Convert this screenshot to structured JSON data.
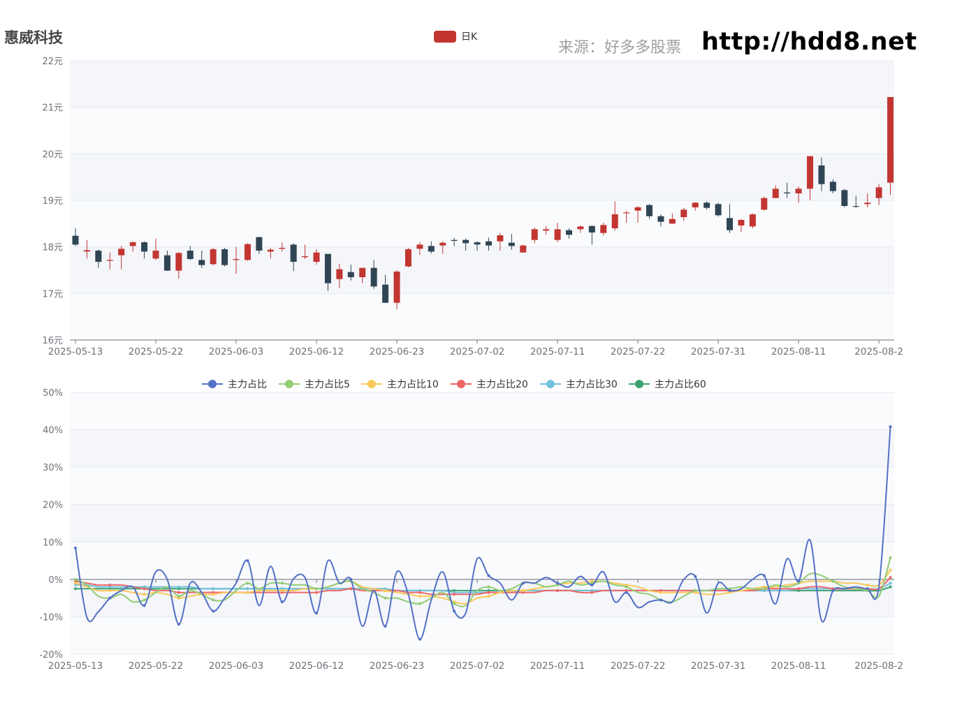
{
  "header": {
    "stock_name": "惠威科技",
    "source_label": "来源：好多多股票",
    "site_url": "http://hdd8.net"
  },
  "colors": {
    "up": "#c23531",
    "down": "#2f4554",
    "main": "#5470c6",
    "main5": "#91cc75",
    "main10": "#fac858",
    "main20": "#ee6666",
    "main30": "#73c0de",
    "main60": "#3ba272"
  },
  "chart_data": [
    {
      "type": "candlestick",
      "legend": [
        "日K"
      ],
      "ylim": [
        16,
        22
      ],
      "y_ticks": [
        "16元",
        "17元",
        "18元",
        "19元",
        "20元",
        "21元",
        "22元"
      ],
      "x_ticks": [
        "2025-05-13",
        "2025-05-22",
        "2025-06-03",
        "2025-06-12",
        "2025-06-23",
        "2025-07-02",
        "2025-07-11",
        "2025-07-22",
        "2025-07-31",
        "2025-08-11",
        "2025-08-2"
      ],
      "ohlc": [
        [
          18.24,
          18.05,
          18.02,
          18.4
        ],
        [
          17.9,
          17.93,
          17.75,
          18.15
        ],
        [
          17.92,
          17.68,
          17.55,
          17.95
        ],
        [
          17.7,
          17.72,
          17.52,
          17.88
        ],
        [
          17.82,
          17.96,
          17.52,
          18.02
        ],
        [
          18.02,
          18.1,
          17.9,
          18.12
        ],
        [
          18.1,
          17.9,
          17.75,
          18.12
        ],
        [
          17.75,
          17.92,
          17.72,
          18.18
        ],
        [
          17.82,
          17.49,
          17.49,
          17.92
        ],
        [
          17.49,
          17.87,
          17.32,
          17.89
        ],
        [
          17.92,
          17.74,
          17.72,
          18.02
        ],
        [
          17.72,
          17.61,
          17.55,
          17.92
        ],
        [
          17.63,
          17.95,
          17.6,
          17.98
        ],
        [
          17.95,
          17.61,
          17.58,
          17.98
        ],
        [
          17.72,
          17.74,
          17.42,
          18.0
        ],
        [
          17.72,
          18.06,
          17.7,
          18.08
        ],
        [
          18.21,
          17.92,
          17.85,
          18.22
        ],
        [
          17.9,
          17.94,
          17.75,
          17.98
        ],
        [
          17.96,
          17.98,
          17.9,
          18.1
        ],
        [
          18.05,
          17.68,
          17.48,
          18.08
        ],
        [
          17.78,
          17.8,
          17.74,
          18.05
        ],
        [
          17.68,
          17.88,
          17.62,
          17.95
        ],
        [
          17.85,
          17.22,
          17.05,
          17.85
        ],
        [
          17.31,
          17.52,
          17.12,
          17.64
        ],
        [
          17.46,
          17.35,
          17.28,
          17.62
        ],
        [
          17.35,
          17.55,
          17.22,
          17.55
        ],
        [
          17.55,
          17.15,
          17.1,
          17.72
        ],
        [
          17.19,
          16.8,
          16.8,
          17.4
        ],
        [
          16.8,
          17.47,
          16.66,
          17.5
        ],
        [
          17.58,
          17.95,
          17.56,
          17.98
        ],
        [
          17.96,
          18.05,
          17.83,
          18.1
        ],
        [
          18.02,
          17.9,
          17.86,
          18.12
        ],
        [
          18.03,
          18.09,
          17.85,
          18.12
        ],
        [
          18.15,
          18.13,
          18.02,
          18.2
        ],
        [
          18.15,
          18.08,
          17.92,
          18.18
        ],
        [
          18.1,
          18.05,
          17.92,
          18.12
        ],
        [
          18.12,
          18.03,
          17.92,
          18.2
        ],
        [
          18.12,
          18.25,
          17.92,
          18.3
        ],
        [
          18.09,
          18.02,
          17.94,
          18.28
        ],
        [
          17.88,
          18.03,
          17.88,
          18.05
        ],
        [
          18.15,
          18.38,
          18.08,
          18.42
        ],
        [
          18.35,
          18.38,
          18.26,
          18.45
        ],
        [
          18.15,
          18.38,
          18.1,
          18.52
        ],
        [
          18.36,
          18.26,
          18.18,
          18.4
        ],
        [
          18.38,
          18.44,
          18.3,
          18.46
        ],
        [
          18.45,
          18.31,
          18.05,
          18.46
        ],
        [
          18.3,
          18.47,
          18.25,
          18.52
        ],
        [
          18.4,
          18.7,
          18.35,
          18.98
        ],
        [
          18.74,
          18.74,
          18.52,
          18.78
        ],
        [
          18.78,
          18.85,
          18.52,
          18.88
        ],
        [
          18.9,
          18.66,
          18.6,
          18.92
        ],
        [
          18.66,
          18.54,
          18.44,
          18.7
        ],
        [
          18.5,
          18.6,
          18.5,
          18.72
        ],
        [
          18.64,
          18.8,
          18.56,
          18.84
        ],
        [
          18.85,
          18.95,
          18.78,
          18.96
        ],
        [
          18.95,
          18.84,
          18.8,
          18.98
        ],
        [
          18.92,
          18.68,
          18.65,
          18.95
        ],
        [
          18.62,
          18.36,
          18.3,
          18.92
        ],
        [
          18.46,
          18.58,
          18.32,
          18.6
        ],
        [
          18.44,
          18.7,
          18.4,
          18.72
        ],
        [
          18.8,
          19.05,
          18.78,
          19.08
        ],
        [
          19.05,
          19.25,
          19.08,
          19.32
        ],
        [
          19.17,
          19.15,
          19.05,
          19.38
        ],
        [
          19.15,
          19.25,
          18.95,
          19.3
        ],
        [
          19.25,
          19.95,
          19.0,
          19.95
        ],
        [
          19.75,
          19.35,
          19.2,
          19.92
        ],
        [
          19.4,
          19.2,
          19.15,
          19.45
        ],
        [
          19.22,
          18.88,
          18.85,
          19.25
        ],
        [
          18.88,
          18.87,
          18.84,
          19.1
        ],
        [
          18.92,
          18.95,
          18.85,
          19.15
        ],
        [
          19.05,
          19.28,
          18.9,
          19.35
        ],
        [
          19.38,
          21.22,
          19.12,
          21.22
        ]
      ]
    },
    {
      "type": "line",
      "ylim": [
        -20,
        50
      ],
      "y_ticks": [
        "-20%",
        "-10%",
        "0%",
        "10%",
        "20%",
        "30%",
        "40%",
        "50%"
      ],
      "x_ticks": [
        "2025-05-13",
        "2025-05-22",
        "2025-06-03",
        "2025-06-12",
        "2025-06-23",
        "2025-07-02",
        "2025-07-11",
        "2025-07-22",
        "2025-07-31",
        "2025-08-11",
        "2025-08-2"
      ],
      "series": [
        {
          "name": "主力占比",
          "color_key": "main",
          "values": [
            8.4,
            -10.2,
            -8.6,
            -5.0,
            -3.0,
            -2.0,
            -7.0,
            2.0,
            0.0,
            -12.0,
            -1.0,
            -3.5,
            -8.5,
            -5.0,
            -1.0,
            5.0,
            -7.0,
            3.5,
            -6.0,
            0.2,
            0.5,
            -9.0,
            5.0,
            -1.0,
            0.0,
            -12.5,
            -3.0,
            -12.5,
            2.0,
            -4.0,
            -16.0,
            -5.5,
            2.0,
            -8.5,
            -9.0,
            5.5,
            1.0,
            -1.0,
            -5.5,
            -1.0,
            -1.0,
            0.5,
            -1.0,
            -2.0,
            0.8,
            -1.5,
            2.0,
            -6.0,
            -3.5,
            -7.5,
            -6.0,
            -5.5,
            -6.0,
            0.0,
            0.8,
            -9.0,
            -1.0,
            -3.0,
            -2.5,
            0.0,
            1.0,
            -6.5,
            5.5,
            -0.5,
            10.5,
            -11.0,
            -3.0,
            -2.5,
            -2.0,
            -2.5,
            -2.0,
            40.8
          ]
        },
        {
          "name": "主力占比5",
          "color_key": "main5",
          "values": [
            0.0,
            -1.5,
            -4.5,
            -5.0,
            -4.0,
            -6.0,
            -5.5,
            -3.5,
            -2.0,
            -4.5,
            -3.0,
            -4.0,
            -5.5,
            -5.5,
            -3.0,
            -1.0,
            -2.5,
            -1.0,
            -1.0,
            -1.5,
            -1.5,
            -2.5,
            -2.0,
            -1.0,
            -0.5,
            -2.5,
            -3.5,
            -5.0,
            -5.0,
            -6.0,
            -6.5,
            -5.0,
            -3.5,
            -6.5,
            -7.0,
            -3.0,
            -2.0,
            -3.0,
            -2.5,
            -1.0,
            -1.0,
            -2.0,
            -1.5,
            -0.5,
            -1.5,
            -1.0,
            -0.5,
            -1.5,
            -2.0,
            -3.5,
            -4.0,
            -5.5,
            -6.0,
            -4.5,
            -3.0,
            -3.0,
            -2.5,
            -2.5,
            -2.0,
            -2.5,
            -2.5,
            -1.5,
            -2.0,
            -1.0,
            1.5,
            1.0,
            -0.5,
            -2.0,
            -2.5,
            -3.0,
            -4.5,
            5.8
          ]
        },
        {
          "name": "主力占比10",
          "color_key": "main10",
          "values": [
            -1.0,
            -2.0,
            -3.0,
            -3.0,
            -3.0,
            -3.5,
            -4.0,
            -3.5,
            -4.0,
            -5.0,
            -4.5,
            -4.0,
            -4.0,
            -3.5,
            -3.5,
            -3.5,
            -3.0,
            -3.0,
            -3.0,
            -3.0,
            -2.5,
            -2.5,
            -2.0,
            -1.0,
            -0.5,
            -2.0,
            -2.5,
            -3.0,
            -3.5,
            -4.0,
            -4.5,
            -4.5,
            -5.0,
            -6.0,
            -6.5,
            -5.0,
            -4.5,
            -3.5,
            -3.0,
            -3.0,
            -2.5,
            -2.0,
            -1.5,
            -1.0,
            -1.0,
            -0.5,
            -0.5,
            -1.0,
            -1.5,
            -2.0,
            -3.0,
            -3.5,
            -3.5,
            -3.5,
            -3.5,
            -4.0,
            -4.0,
            -3.5,
            -3.0,
            -2.5,
            -2.0,
            -2.0,
            -1.5,
            -1.0,
            -0.5,
            -0.5,
            -0.5,
            -1.0,
            -1.0,
            -1.5,
            -1.5,
            2.5
          ]
        },
        {
          "name": "主力占比20",
          "color_key": "main20",
          "values": [
            -0.5,
            -1.0,
            -1.5,
            -1.5,
            -1.5,
            -2.0,
            -2.5,
            -3.0,
            -3.0,
            -3.5,
            -3.5,
            -3.5,
            -3.5,
            -3.5,
            -3.5,
            -3.5,
            -3.5,
            -3.5,
            -3.5,
            -3.5,
            -3.5,
            -3.5,
            -3.0,
            -3.0,
            -2.5,
            -3.0,
            -3.0,
            -3.0,
            -3.0,
            -3.5,
            -3.5,
            -4.0,
            -4.0,
            -4.0,
            -4.0,
            -4.0,
            -3.5,
            -3.5,
            -3.5,
            -3.5,
            -3.5,
            -3.0,
            -3.0,
            -3.0,
            -3.5,
            -3.5,
            -3.0,
            -3.0,
            -3.0,
            -3.0,
            -3.0,
            -3.0,
            -3.0,
            -3.0,
            -3.0,
            -3.0,
            -3.0,
            -3.0,
            -3.0,
            -3.0,
            -2.5,
            -2.5,
            -2.5,
            -2.5,
            -2.0,
            -2.0,
            -2.5,
            -2.5,
            -2.5,
            -2.5,
            -2.5,
            0.5
          ]
        },
        {
          "name": "主力占比30",
          "color_key": "main30",
          "values": [
            -1.5,
            -1.5,
            -2.0,
            -2.0,
            -2.0,
            -2.0,
            -2.0,
            -2.0,
            -2.0,
            -2.0,
            -2.0,
            -2.5,
            -2.5,
            -2.5,
            -2.5,
            -2.5,
            -2.5,
            -2.5,
            -2.5,
            -2.5,
            -2.5,
            -2.5,
            -2.5,
            -2.5,
            -2.5,
            -2.5,
            -2.5,
            -2.5,
            -3.0,
            -3.0,
            -3.0,
            -3.0,
            -3.0,
            -3.5,
            -3.5,
            -3.5,
            -3.5,
            -3.5,
            -3.5,
            -3.0,
            -3.0,
            -3.0,
            -3.0,
            -3.0,
            -3.0,
            -3.0,
            -3.0,
            -3.0,
            -3.0,
            -3.0,
            -3.0,
            -3.0,
            -3.0,
            -3.0,
            -3.0,
            -3.0,
            -3.0,
            -3.0,
            -3.0,
            -3.0,
            -3.0,
            -3.0,
            -3.0,
            -2.5,
            -2.5,
            -2.5,
            -2.5,
            -2.5,
            -2.5,
            -2.5,
            -2.5,
            -1.0
          ]
        },
        {
          "name": "主力占比60",
          "color_key": "main60",
          "values": [
            -2.5,
            -2.5,
            -2.5,
            -2.5,
            -2.5,
            -2.5,
            -2.5,
            -2.5,
            -2.5,
            -2.5,
            -2.5,
            -2.5,
            -2.5,
            -2.5,
            -2.5,
            -2.5,
            -2.5,
            -2.5,
            -2.5,
            -2.5,
            -2.5,
            -2.5,
            -2.5,
            -2.5,
            -2.5,
            -2.5,
            -2.5,
            -3.0,
            -3.0,
            -3.0,
            -3.0,
            -3.0,
            -3.0,
            -3.0,
            -3.0,
            -3.0,
            -3.0,
            -3.0,
            -3.0,
            -3.0,
            -3.0,
            -3.0,
            -3.0,
            -3.0,
            -3.0,
            -3.0,
            -3.0,
            -3.0,
            -3.0,
            -3.0,
            -3.0,
            -3.0,
            -3.0,
            -3.0,
            -3.0,
            -3.0,
            -3.0,
            -3.0,
            -3.0,
            -3.0,
            -3.0,
            -3.0,
            -3.0,
            -3.0,
            -3.0,
            -3.0,
            -3.0,
            -3.0,
            -3.0,
            -3.0,
            -3.0,
            -2.0
          ]
        }
      ]
    }
  ]
}
